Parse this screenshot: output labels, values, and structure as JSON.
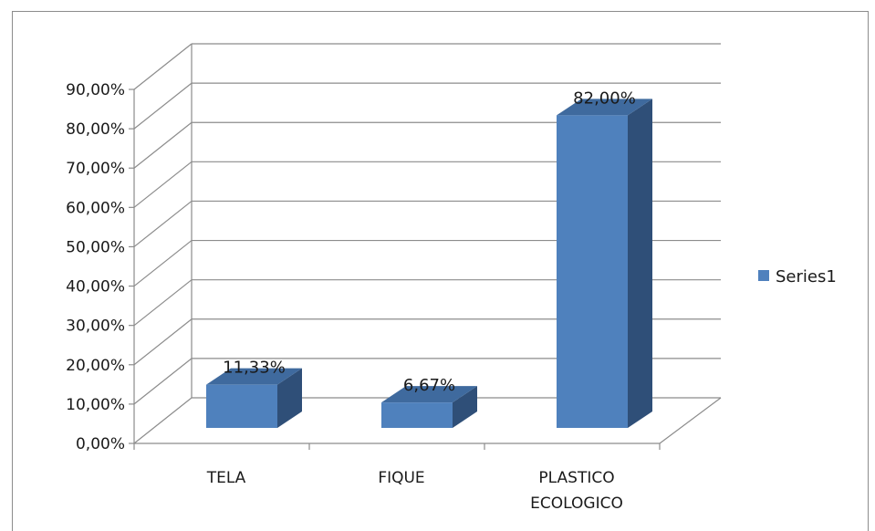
{
  "chart_data": {
    "type": "bar",
    "categories": [
      "TELA",
      "FIQUE",
      "PLASTICO ECOLOGICO"
    ],
    "category_lines": [
      [
        "TELA"
      ],
      [
        "FIQUE"
      ],
      [
        "PLASTICO",
        "ECOLOGICO"
      ]
    ],
    "series": [
      {
        "name": "Series1",
        "values": [
          11.33,
          6.67,
          82.0
        ],
        "color": "#4f81bd"
      }
    ],
    "data_labels": [
      "11,33%",
      "6,67%",
      "82,00%"
    ],
    "ylim": [
      0,
      90
    ],
    "ystep": 10,
    "y_tick_labels": [
      "0,00%",
      "10,00%",
      "20,00%",
      "30,00%",
      "40,00%",
      "50,00%",
      "60,00%",
      "70,00%",
      "80,00%",
      "90,00%"
    ],
    "title": "",
    "xlabel": "",
    "ylabel": "",
    "grid": true,
    "three_d": true,
    "legend": {
      "position": "right",
      "label": "Series1"
    },
    "colors": {
      "bar_front": "#4f81bd",
      "bar_top": "#3f6a9e",
      "bar_side": "#2f4f78",
      "grid": "#8c8c8c",
      "axis": "#8c8c8c"
    }
  }
}
